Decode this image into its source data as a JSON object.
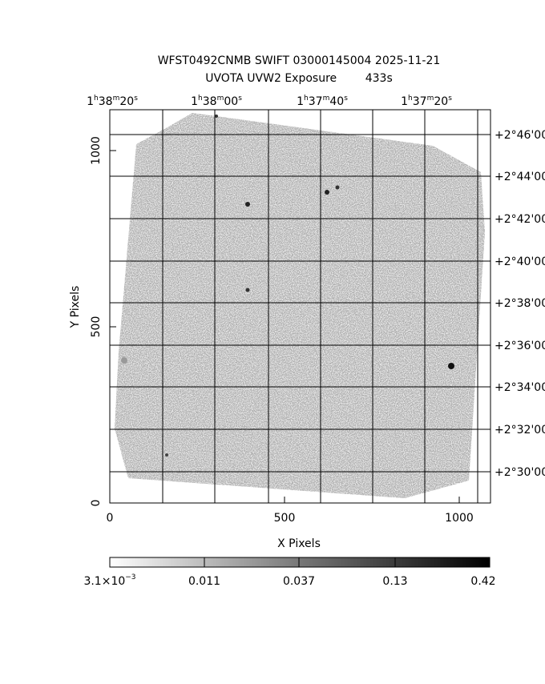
{
  "header": {
    "title": "WFST0492CNMB SWIFT 03000145004 2025-11-21",
    "subtitle": "UVOTA UVW2 Exposure        433s"
  },
  "axes": {
    "x_label": "X Pixels",
    "y_label": "Y Pixels",
    "x_ticks": [
      "0",
      "500",
      "1000"
    ],
    "y_ticks": [
      "0",
      "500",
      "1000"
    ],
    "ra_labels": [
      [
        "1",
        "h",
        "38",
        "m",
        "20",
        "s"
      ],
      [
        "1",
        "h",
        "38",
        "m",
        "00",
        "s"
      ],
      [
        "1",
        "h",
        "37",
        "m",
        "40",
        "s"
      ],
      [
        "1",
        "h",
        "37",
        "m",
        "20",
        "s"
      ]
    ],
    "dec_labels": [
      "+2°46'00",
      "+2°44'00",
      "+2°42'00",
      "+2°40'00",
      "+2°38'00",
      "+2°36'00",
      "+2°34'00",
      "+2°32'00",
      "+2°30'00"
    ]
  },
  "colorbar": {
    "labels": [
      [
        "3.1×10",
        "−3"
      ],
      [
        "0.011"
      ],
      [
        "0.037"
      ],
      [
        "0.13"
      ],
      [
        "0.42"
      ]
    ]
  }
}
